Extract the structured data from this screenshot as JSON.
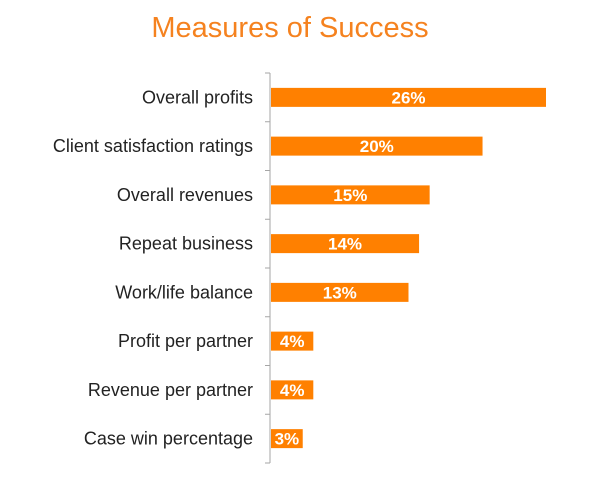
{
  "chart_data": {
    "type": "bar",
    "orientation": "horizontal",
    "title": "Measures of Success",
    "categories": [
      "Overall profits",
      "Client satisfaction ratings",
      "Overall revenues",
      "Repeat business",
      "Work/life balance",
      "Profit per partner",
      "Revenue per partner",
      "Case win percentage"
    ],
    "values": [
      26,
      20,
      15,
      14,
      13,
      4,
      4,
      3
    ],
    "value_labels": [
      "26%",
      "20%",
      "15%",
      "14%",
      "13%",
      "4%",
      "4%",
      "3%"
    ],
    "xlim": [
      0,
      30
    ],
    "grid": false,
    "legend": "none",
    "colors": {
      "bar": "#FF8000",
      "title": "#F5821F",
      "axis": "#A6A6A6"
    }
  }
}
